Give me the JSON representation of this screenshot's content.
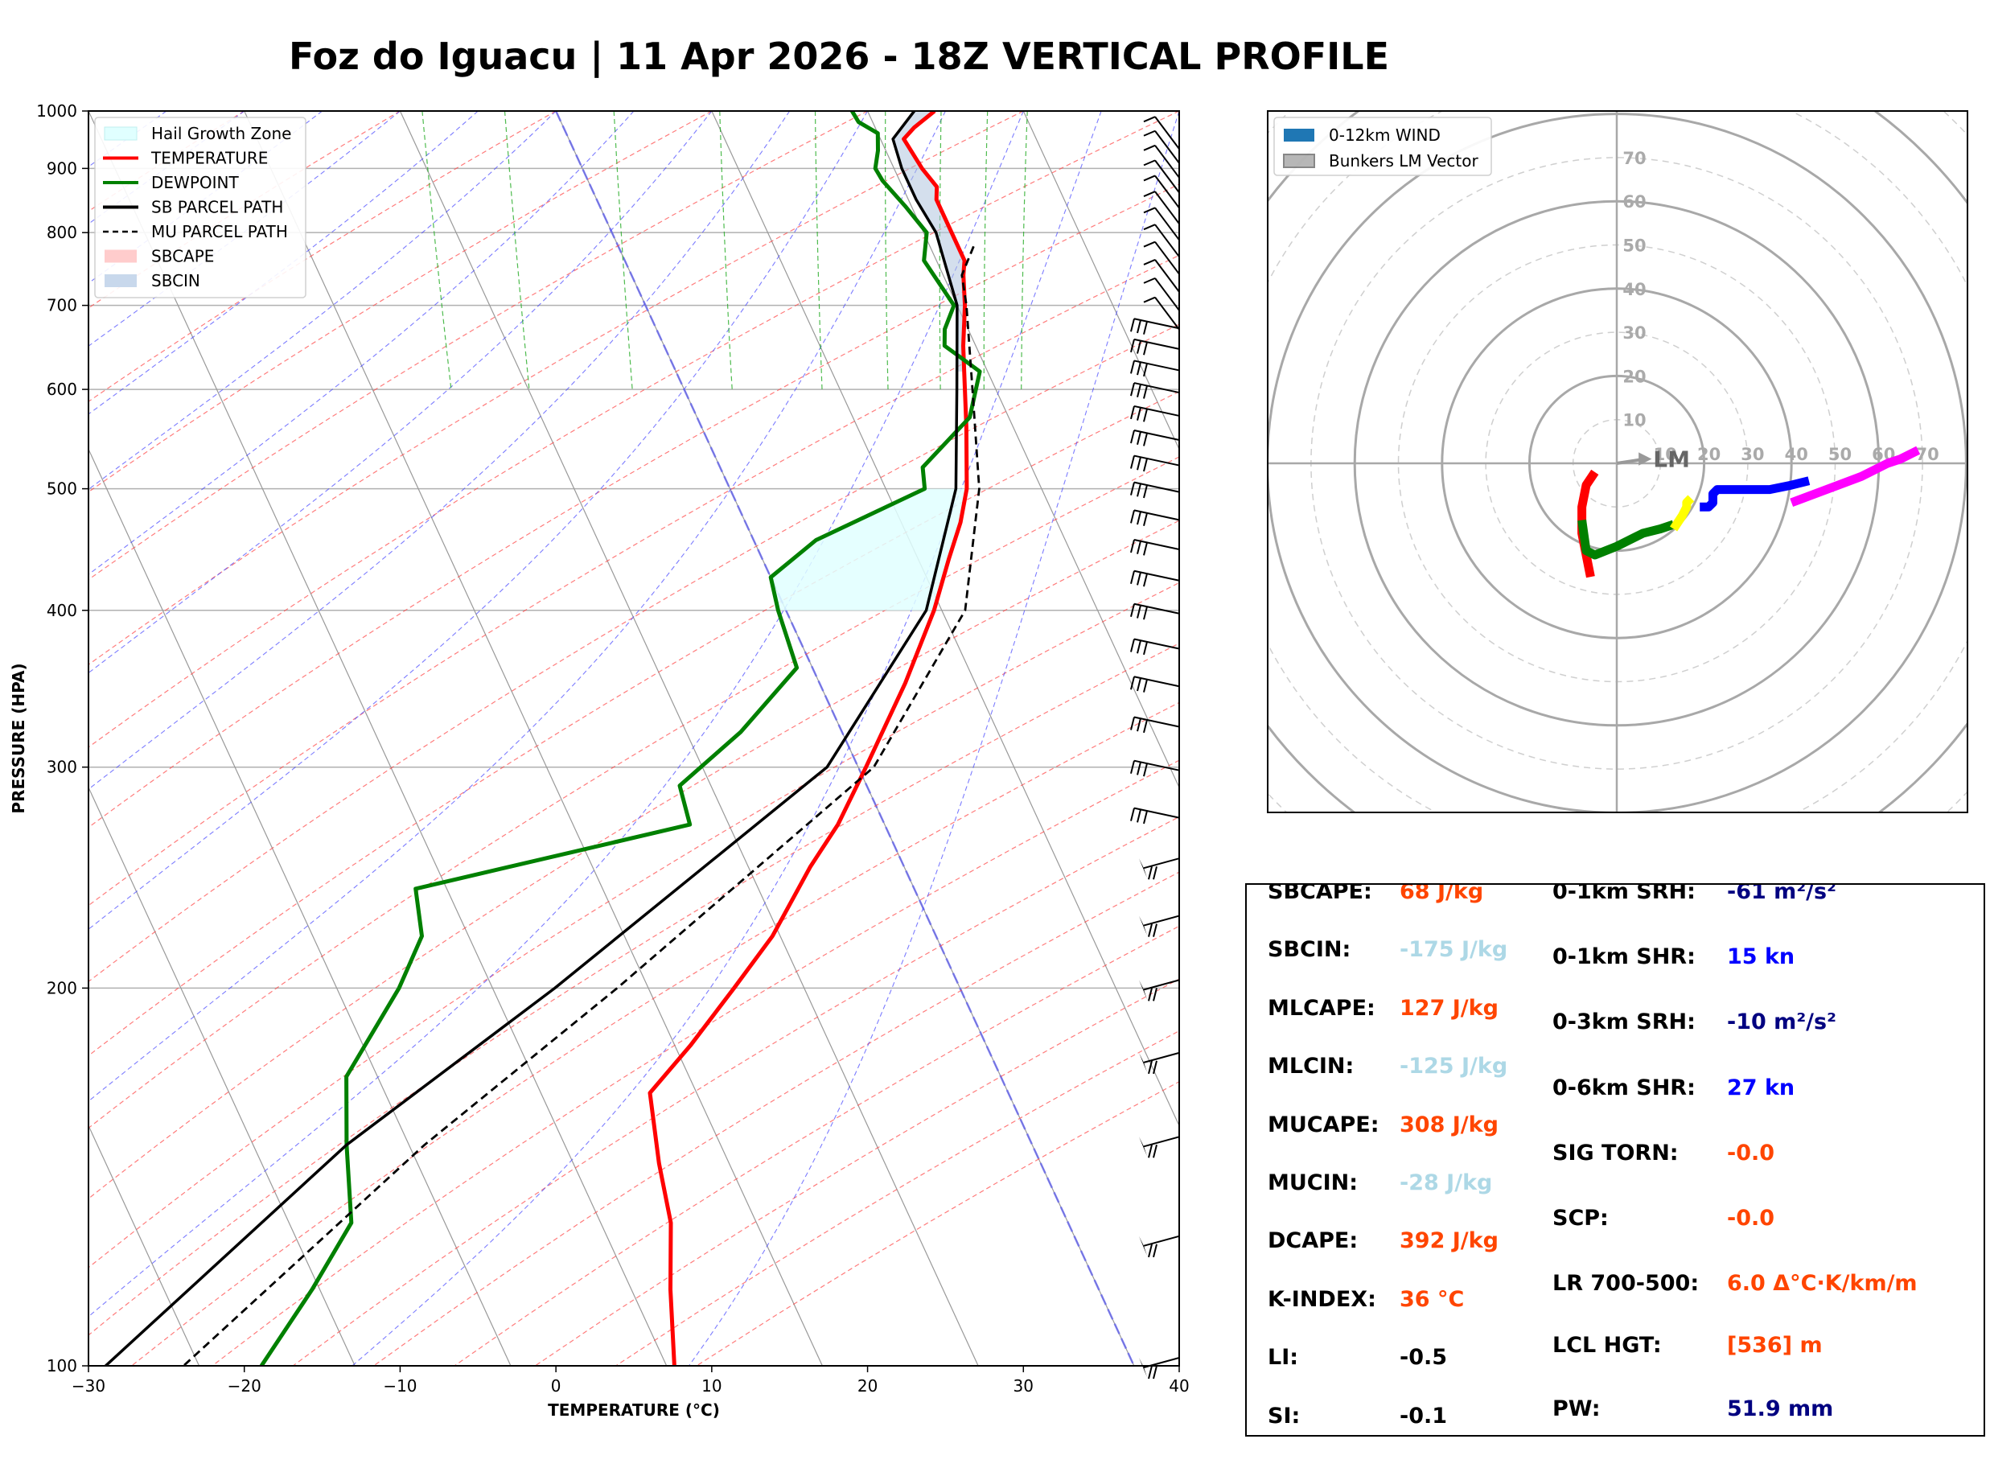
{
  "title": "Foz do Iguacu | 11 Apr 2026 - 18Z VERTICAL PROFILE",
  "colors": {
    "temperature": "#ff0000",
    "dewpoint": "#008000",
    "parcel": "#000000",
    "hgz": "#e0ffff",
    "sbcin_fill": "#b0c4de",
    "isotherm": "#808080",
    "dry_adiabat": "#ff4444",
    "moist_adiabat": "#4444ff",
    "mixing_ratio": "#22aa22",
    "zero_isotherm": "#6666ee",
    "orange_value": "#ff4500",
    "lightblue_value": "#add8e6",
    "navy_value": "#000080",
    "blue_value": "#0000ff"
  },
  "chart_data": [
    {
      "type": "line",
      "name": "skew-t",
      "xlabel": "TEMPERATURE (°C)",
      "ylabel": "PRESSURE (HPA)",
      "xlim": [
        -30,
        40
      ],
      "ylim": [
        1000,
        100
      ],
      "y_scale": "log",
      "x_ticks": [
        "−30",
        "−20",
        "−10",
        "0",
        "10",
        "20",
        "30",
        "40"
      ],
      "y_ticks": [
        "100",
        "200",
        "300",
        "400",
        "500",
        "600",
        "700",
        "800",
        "900",
        "1000"
      ],
      "grid": true,
      "legend_position": "top-left",
      "legend": [
        {
          "label": "Hail Growth Zone",
          "style": "fill-cyan"
        },
        {
          "label": "TEMPERATURE",
          "style": "line-red"
        },
        {
          "label": "DEWPOINT",
          "style": "line-green"
        },
        {
          "label": "SB PARCEL PATH",
          "style": "line-black"
        },
        {
          "label": "MU PARCEL PATH",
          "style": "line-black-dashed"
        },
        {
          "label": "SBCAPE",
          "style": "fill-pink"
        },
        {
          "label": "SBCIN",
          "style": "fill-lightblue"
        }
      ],
      "series": [
        {
          "name": "TEMPERATURE",
          "points": [
            [
              1000,
              24.3
            ],
            [
              970,
              22.5
            ],
            [
              950,
              21.5
            ],
            [
              900,
              21.8
            ],
            [
              870,
              22.2
            ],
            [
              850,
              21.8
            ],
            [
              800,
              21.8
            ],
            [
              760,
              21.8
            ],
            [
              740,
              21.3
            ],
            [
              700,
              20.5
            ],
            [
              650,
              19.2
            ],
            [
              620,
              18.5
            ],
            [
              560,
              17.0
            ],
            [
              500,
              15.2
            ],
            [
              470,
              13.8
            ],
            [
              440,
              12.0
            ],
            [
              400,
              9.5
            ],
            [
              350,
              5.5
            ],
            [
              300,
              0.5
            ],
            [
              270,
              -3.0
            ],
            [
              250,
              -6.0
            ],
            [
              220,
              -10.5
            ],
            [
              200,
              -14.5
            ],
            [
              180,
              -19.0
            ],
            [
              165,
              -23.0
            ],
            [
              145,
              -24.5
            ],
            [
              130,
              -25.5
            ],
            [
              115,
              -27.5
            ],
            [
              100,
              -29.5
            ]
          ]
        },
        {
          "name": "DEWPOINT",
          "points": [
            [
              1000,
              19.0
            ],
            [
              980,
              19.1
            ],
            [
              960,
              20.0
            ],
            [
              930,
              19.5
            ],
            [
              900,
              18.8
            ],
            [
              880,
              18.9
            ],
            [
              840,
              19.6
            ],
            [
              800,
              20.2
            ],
            [
              760,
              19.2
            ],
            [
              700,
              19.8
            ],
            [
              670,
              18.5
            ],
            [
              650,
              18.0
            ],
            [
              640,
              18.5
            ],
            [
              620,
              19.5
            ],
            [
              570,
              17.5
            ],
            [
              520,
              13.0
            ],
            [
              500,
              12.5
            ],
            [
              455,
              4.0
            ],
            [
              425,
              0.0
            ],
            [
              400,
              -0.5
            ],
            [
              360,
              -1.0
            ],
            [
              320,
              -6.5
            ],
            [
              290,
              -12.0
            ],
            [
              270,
              -12.5
            ],
            [
              240,
              -32.0
            ],
            [
              220,
              -33.0
            ],
            [
              200,
              -36.0
            ],
            [
              170,
              -42.0
            ],
            [
              150,
              -44.0
            ],
            [
              130,
              -46.0
            ],
            [
              115,
              -50.5
            ],
            [
              100,
              -56.0
            ]
          ]
        },
        {
          "name": "SB PARCEL PATH",
          "points": [
            [
              1000,
              23.0
            ],
            [
              950,
              20.8
            ],
            [
              900,
              20.5
            ],
            [
              850,
              20.5
            ],
            [
              800,
              20.8
            ],
            [
              700,
              20.0
            ],
            [
              600,
              17.5
            ],
            [
              500,
              14.5
            ],
            [
              400,
              9.0
            ],
            [
              300,
              -2.0
            ],
            [
              200,
              -26.0
            ],
            [
              150,
              -44.0
            ],
            [
              100,
              -66.0
            ]
          ]
        },
        {
          "name": "MU PARCEL PATH",
          "points": [
            [
              780,
              22.8
            ],
            [
              740,
              21.2
            ],
            [
              700,
              20.6
            ],
            [
              600,
              18.5
            ],
            [
              500,
              16.0
            ],
            [
              400,
              11.5
            ],
            [
              300,
              1.0
            ],
            [
              200,
              -22.0
            ],
            [
              150,
              -39.0
            ],
            [
              100,
              -61.0
            ]
          ]
        }
      ],
      "hail_growth_zone_hpa": [
        400,
        500
      ],
      "sbcin_hpa": [
        620,
        1000
      ],
      "wind_barbs_hpa": [
        100,
        125,
        150,
        175,
        200,
        225,
        250,
        275,
        300,
        325,
        350,
        375,
        400,
        425,
        450,
        475,
        500,
        525,
        550,
        575,
        600,
        625,
        650,
        675,
        700,
        725,
        750,
        775,
        800,
        825,
        850,
        875,
        900,
        925,
        950,
        975
      ]
    },
    {
      "type": "scatter",
      "name": "hodograph",
      "legend": [
        {
          "label": "0-12km WIND",
          "color": "#1f77b4"
        },
        {
          "label": "Bunkers LM Vector",
          "color": "#999999"
        }
      ],
      "legend_position": "top-left",
      "ring_labels_y": [
        "10",
        "20",
        "30",
        "40",
        "50",
        "60",
        "70"
      ],
      "ring_labels_x": [
        "10",
        "20",
        "30",
        "40",
        "50",
        "60",
        "70"
      ],
      "lm_label": "LM",
      "lm_vector": [
        6.5,
        1.0
      ],
      "xlim": [
        -80,
        80
      ],
      "ylim": [
        -80,
        80
      ],
      "segments": [
        {
          "color": "#ff0000",
          "points": [
            [
              -6,
              -26
            ],
            [
              -8,
              -16
            ],
            [
              -8,
              -10
            ],
            [
              -7,
              -5
            ],
            [
              -5,
              -2
            ]
          ]
        },
        {
          "color": "#008000",
          "points": [
            [
              -8,
              -13
            ],
            [
              -7,
              -20
            ],
            [
              -5,
              -21
            ],
            [
              0,
              -19
            ],
            [
              6,
              -16
            ],
            [
              10,
              -15
            ],
            [
              13,
              -14
            ]
          ]
        },
        {
          "color": "#ffff00",
          "points": [
            [
              13,
              -15
            ],
            [
              15,
              -12
            ],
            [
              16,
              -10
            ],
            [
              16,
              -9
            ],
            [
              17,
              -8
            ]
          ]
        },
        {
          "color": "#0000ff",
          "points": [
            [
              19,
              -10
            ],
            [
              21,
              -10
            ],
            [
              22,
              -9
            ],
            [
              22,
              -7
            ],
            [
              23,
              -6
            ],
            [
              26,
              -6
            ],
            [
              30,
              -6
            ],
            [
              35,
              -6
            ],
            [
              40,
              -5
            ],
            [
              44,
              -4
            ]
          ]
        },
        {
          "color": "#ff00ff",
          "points": [
            [
              40,
              -9
            ],
            [
              48,
              -6
            ],
            [
              56,
              -3
            ],
            [
              62,
              0
            ],
            [
              65,
              1
            ],
            [
              69,
              3
            ]
          ]
        }
      ]
    }
  ],
  "stats": {
    "left_labels": [
      "SBCAPE:",
      "SBCIN:",
      "MLCAPE:",
      "MLCIN:",
      "MUCAPE:",
      "MUCIN:",
      "DCAPE:",
      "K-INDEX:",
      "LI:",
      "SI:"
    ],
    "left_values": [
      "68 J/kg",
      "-175 J/kg",
      "127 J/kg",
      "-125 J/kg",
      "308 J/kg",
      "-28 J/kg",
      "392 J/kg",
      "36 °C",
      "-0.5",
      "-0.1"
    ],
    "left_colors": [
      "#ff4500",
      "#add8e6",
      "#ff4500",
      "#add8e6",
      "#ff4500",
      "#add8e6",
      "#ff4500",
      "#ff4500",
      "#000000",
      "#000000"
    ],
    "right_labels": [
      "0-1km SRH:",
      "0-1km SHR:",
      "0-3km SRH:",
      "0-6km SHR:",
      "SIG TORN:",
      "SCP:",
      "LR 700-500:",
      "LCL HGT:",
      "PW:"
    ],
    "right_values": [
      "-61 m²/s²",
      "15 kn",
      "-10 m²/s²",
      "27 kn",
      "-0.0",
      "-0.0",
      "6.0 Δ°C·K/km/m",
      "[536] m",
      "51.9 mm"
    ],
    "right_colors": [
      "#000080",
      "#0000ff",
      "#000080",
      "#0000ff",
      "#ff4500",
      "#ff4500",
      "#ff4500",
      "#ff4500",
      "#000080"
    ]
  }
}
